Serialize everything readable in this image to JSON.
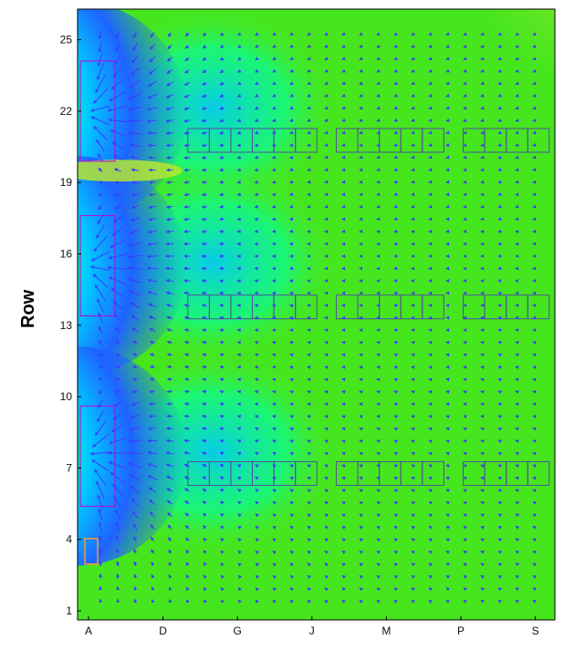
{
  "chart_data": {
    "type": "heatmap",
    "subtype": "contour-with-vector-field",
    "title": "",
    "xlabel": "",
    "ylabel": "Row",
    "x_ticks": [
      "A",
      "D",
      "G",
      "J",
      "M",
      "P",
      "S"
    ],
    "y_ticks": [
      1,
      4,
      7,
      10,
      13,
      16,
      19,
      22,
      25
    ],
    "x_range": [
      "A",
      "S"
    ],
    "y_range": [
      1,
      25
    ],
    "grid": false,
    "legend": "none",
    "colormap": [
      "#ffffff",
      "#00008b",
      "#1e64ff",
      "#00c8ff",
      "#00ffaa",
      "#46e61e",
      "#b4e632",
      "#ffd200",
      "#ff3c00",
      "#c80000"
    ],
    "background_level_color": "#46e61e",
    "arrow_color": "#3c3cff",
    "box_color": "#5050a0",
    "source_color": "#c800c8",
    "marker_color": "#ff9632",
    "hotspots": [
      {
        "x": "A",
        "row": 22,
        "level": "max"
      },
      {
        "x": "A",
        "row": 15.5,
        "level": "max"
      },
      {
        "x": "A",
        "row": 7.5,
        "level": "max"
      }
    ],
    "unit_rows": [
      {
        "row": 21,
        "x_start": "E",
        "x_end": "R",
        "gaps_after": [
          "I",
          "N"
        ]
      },
      {
        "row": 14,
        "x_start": "E",
        "x_end": "R",
        "gaps_after": [
          "I",
          "N"
        ]
      },
      {
        "row": 7,
        "x_start": "E",
        "x_end": "R",
        "gaps_after": [
          "I",
          "N"
        ]
      }
    ]
  }
}
